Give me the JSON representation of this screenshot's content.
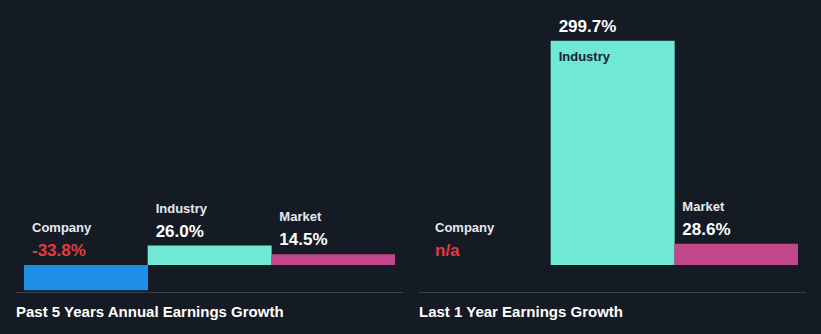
{
  "chart_data": [
    {
      "type": "bar",
      "title": "Past 5 Years Annual Earnings Growth",
      "categories": [
        "Company",
        "Industry",
        "Market"
      ],
      "values": [
        -33.8,
        26.0,
        14.5
      ],
      "value_labels": [
        "-33.8%",
        "26.0%",
        "14.5%"
      ],
      "colors": [
        "#1f8fe5",
        "#6fe8d6",
        "#c2468a"
      ],
      "ylim": [
        -40,
        310
      ],
      "data_labels": true,
      "tick_labels": false,
      "grid": false
    },
    {
      "type": "bar",
      "title": "Last 1 Year Earnings Growth",
      "categories": [
        "Company",
        "Industry",
        "Market"
      ],
      "values": [
        null,
        299.7,
        28.6
      ],
      "value_labels": [
        "n/a",
        "299.7%",
        "28.6%"
      ],
      "colors": [
        "#1f8fe5",
        "#6fe8d6",
        "#c2468a"
      ],
      "ylim": [
        -40,
        310
      ],
      "data_labels": true,
      "tick_labels": false,
      "grid": false
    }
  ]
}
